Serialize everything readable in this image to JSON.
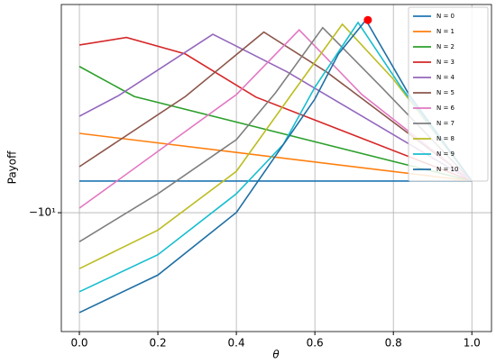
{
  "chart_data": {
    "type": "line",
    "xlabel": "θ",
    "ylabel": "Payoff",
    "xlim": [
      -0.046,
      1.05
    ],
    "ylim": [
      -27.5,
      -1.7
    ],
    "yscale": "symlog",
    "xticks": [
      {
        "value": 0,
        "label": "0.0"
      },
      {
        "value": 0.2,
        "label": "0.2"
      },
      {
        "value": 0.4,
        "label": "0.4"
      },
      {
        "value": 0.6,
        "label": "0.6"
      },
      {
        "value": 0.8,
        "label": "0.8"
      },
      {
        "value": 1,
        "label": "1.0"
      }
    ],
    "yticks": [
      {
        "value": -10,
        "label": "−10¹"
      }
    ],
    "grid": true,
    "legend": "upper right",
    "series": [
      {
        "name": "N = 0",
        "color": "#1f77b4",
        "x": [
          0,
          1
        ],
        "values": [
          -7.64,
          -7.64
        ]
      },
      {
        "name": "N = 1",
        "color": "#ff7f0e",
        "x": [
          0,
          1
        ],
        "values": [
          -5.09,
          -7.64
        ]
      },
      {
        "name": "N = 2",
        "color": "#2ca02c",
        "x": [
          0,
          0.14,
          1
        ],
        "values": [
          -2.88,
          -3.72,
          -7.64
        ]
      },
      {
        "name": "N = 3",
        "color": "#d62728",
        "x": [
          0,
          0.12,
          0.27,
          0.45,
          1
        ],
        "values": [
          -2.4,
          -2.25,
          -2.59,
          -3.74,
          -7.64
        ]
      },
      {
        "name": "N = 4",
        "color": "#9467bd",
        "x": [
          0,
          0.1,
          0.34,
          0.53,
          1
        ],
        "values": [
          -4.4,
          -3.69,
          -2.19,
          -3.02,
          -7.64
        ]
      },
      {
        "name": "N = 5",
        "color": "#8c564b",
        "x": [
          0,
          0.27,
          0.47,
          0.63,
          1
        ],
        "values": [
          -6.76,
          -3.72,
          -2.15,
          -3.02,
          -7.64
        ]
      },
      {
        "name": "N = 6",
        "color": "#e377c2",
        "x": [
          0,
          0.4,
          0.56,
          0.72,
          1
        ],
        "values": [
          -9.62,
          -3.66,
          -2.11,
          -3.66,
          -7.64
        ]
      },
      {
        "name": "N = 7",
        "color": "#7f7f7f",
        "x": [
          0,
          0.2,
          0.4,
          0.5,
          0.62,
          0.77,
          1
        ],
        "values": [
          -12.8,
          -8.51,
          -5.37,
          -3.6,
          -2.07,
          -3.44,
          -7.64
        ]
      },
      {
        "name": "N = 8",
        "color": "#bcbd22",
        "x": [
          0,
          0.2,
          0.4,
          0.54,
          0.67,
          0.8,
          1
        ],
        "values": [
          -16.1,
          -11.6,
          -7.03,
          -3.66,
          -2.01,
          -3.21,
          -7.64
        ]
      },
      {
        "name": "N = 9",
        "color": "#17becf",
        "x": [
          0,
          0.2,
          0.4,
          0.52,
          0.6,
          0.71,
          0.82,
          1
        ],
        "values": [
          -19.6,
          -14.3,
          -8.51,
          -5.58,
          -3.44,
          -1.98,
          -3.44,
          -7.64
        ]
      },
      {
        "name": "N = 10",
        "color": "#1f6fa4",
        "x": [
          0,
          0.2,
          0.4,
          0.6,
          0.66,
          0.73,
          0.84,
          1
        ],
        "values": [
          -23.4,
          -17.0,
          -9.98,
          -3.8,
          -2.59,
          -1.94,
          -3.66,
          -7.64
        ]
      }
    ],
    "marker": {
      "x": 0.735,
      "y": -1.94,
      "color": "#ff0000"
    }
  }
}
